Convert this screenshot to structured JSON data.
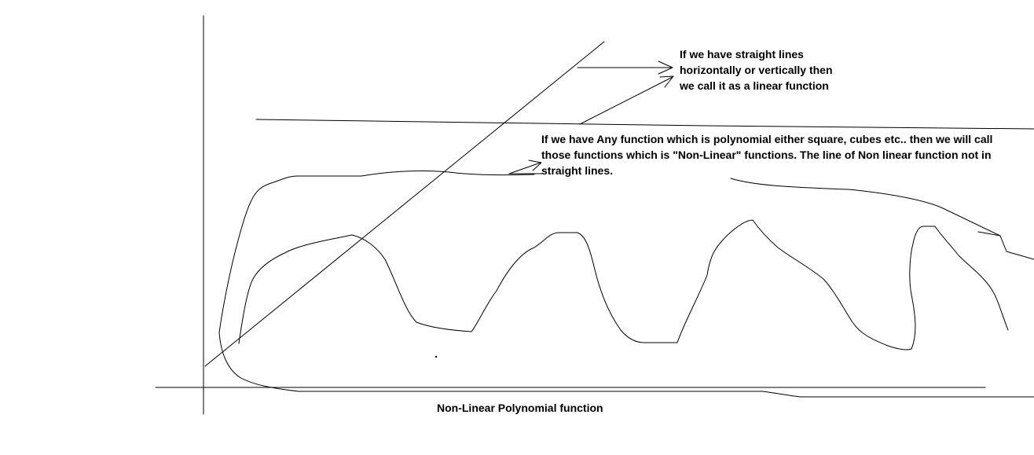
{
  "annotations": {
    "linear_note": "If we have straight lines horizontally or vertically then we call it as a linear function",
    "nonlinear_note": "If we have Any function which is polynomial either square, cubes etc.. then we will call those functions which is \"Non-Linear\" functions. The line of Non linear function not in straight lines."
  },
  "caption": "Non-Linear Polynomial function",
  "colors": {
    "background": "#ffffff",
    "ink": "#000000"
  }
}
